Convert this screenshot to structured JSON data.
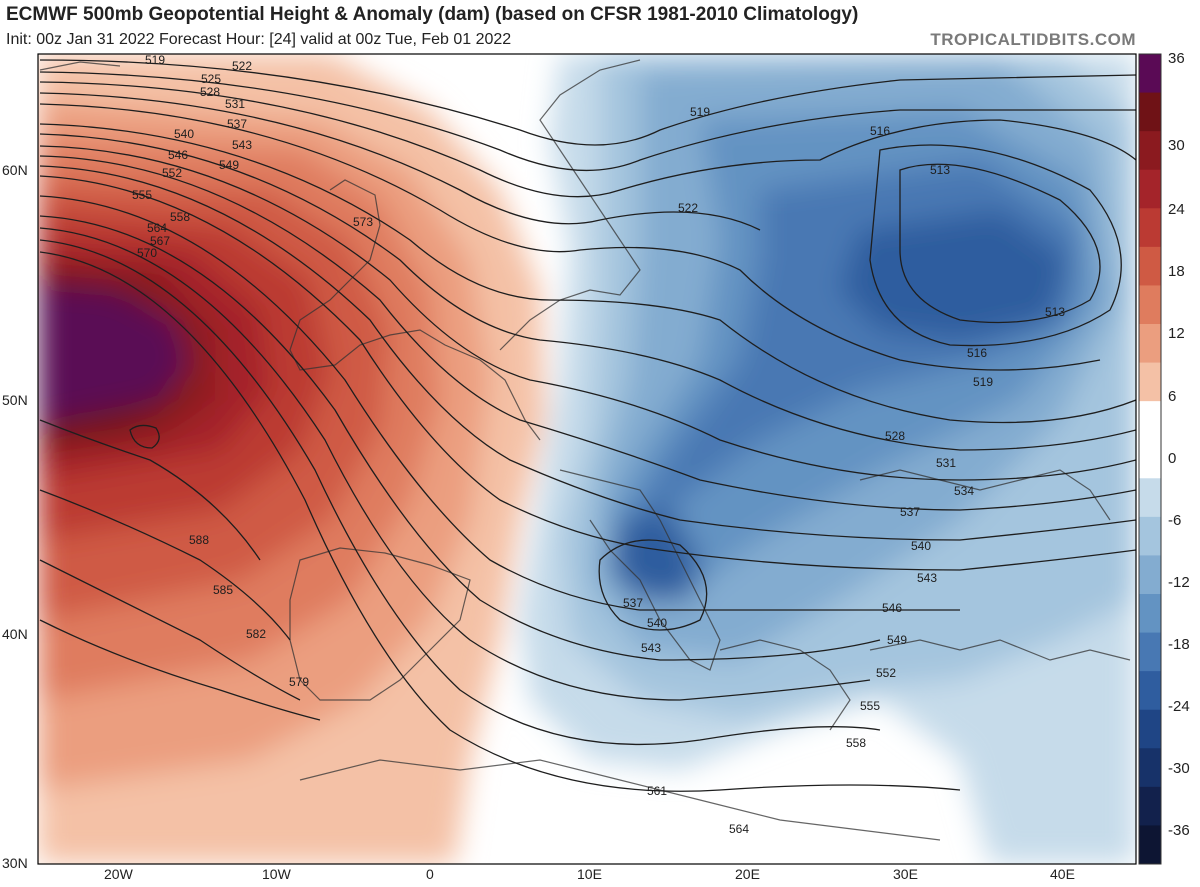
{
  "header": {
    "title": "ECMWF 500mb Geopotential Height & Anomaly (dam) (based on CFSR 1981-2010 Climatology)",
    "subtitle": "Init: 00z Jan 31 2022   Forecast Hour: [24]   valid at 00z Tue, Feb 01 2022",
    "brand": "TROPICALTIDBITS.COM"
  },
  "axes": {
    "lat_labels": [
      "60N",
      "50N",
      "40N",
      "30N"
    ],
    "lon_labels": [
      "20W",
      "10W",
      "0",
      "10E",
      "20E",
      "30E",
      "40E"
    ]
  },
  "colorbar": {
    "ticks": [
      "36",
      "30",
      "24",
      "18",
      "12",
      "6",
      "0",
      "-6",
      "-12",
      "-18",
      "-24",
      "-30",
      "-36"
    ],
    "colors": [
      "#5a0a55",
      "#6f1216",
      "#8b1a1f",
      "#a4242a",
      "#bb3a33",
      "#cf5a44",
      "#df7c5e",
      "#eb9e7f",
      "#f4c1a6",
      "#ffffff",
      "#ffffff",
      "#c6dbea",
      "#a4c5de",
      "#83acd0",
      "#6393c2",
      "#4878b3",
      "#2f5d9f",
      "#1f4585",
      "#173269",
      "#12214c",
      "#0d1533"
    ]
  },
  "contours": {
    "labels": [
      "519",
      "522",
      "525",
      "528",
      "531",
      "537",
      "540",
      "543",
      "546",
      "549",
      "552",
      "555",
      "558",
      "564",
      "567",
      "570",
      "573",
      "588",
      "585",
      "582",
      "579",
      "519",
      "522",
      "516",
      "513",
      "513",
      "516",
      "519",
      "528",
      "531",
      "534",
      "537",
      "540",
      "543",
      "546",
      "549",
      "552",
      "555",
      "558",
      "561",
      "564",
      "537",
      "540",
      "543"
    ]
  }
}
